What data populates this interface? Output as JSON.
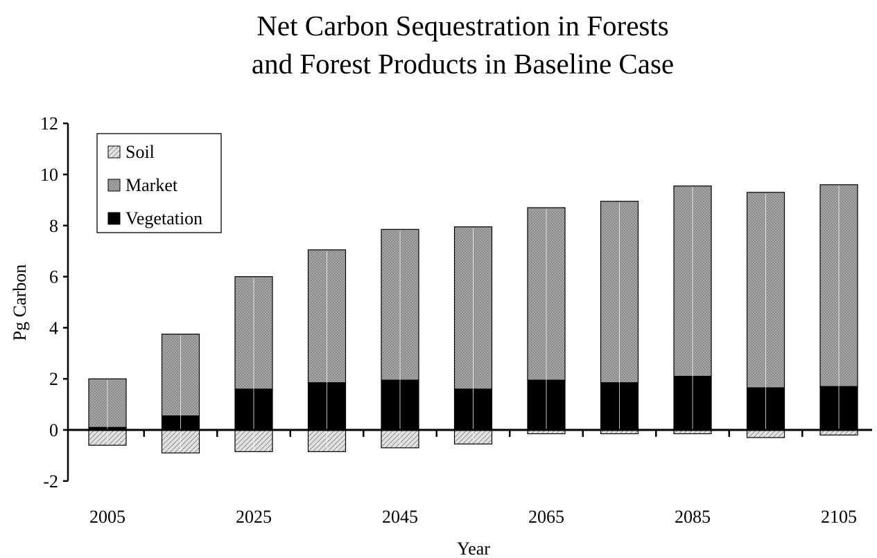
{
  "chart_data": {
    "type": "bar",
    "stacked": true,
    "title_lines": [
      "Net Carbon Sequestration in Forests",
      "and Forest Products in Baseline Case"
    ],
    "xlabel": "Year",
    "ylabel": "Pg Carbon",
    "ylim": [
      -2,
      12
    ],
    "yticks": [
      -2,
      0,
      2,
      4,
      6,
      8,
      10,
      12
    ],
    "x": [
      2005,
      2015,
      2025,
      2035,
      2045,
      2055,
      2065,
      2075,
      2085,
      2095,
      2105
    ],
    "xtick_labels": [
      "2005",
      "2025",
      "2045",
      "2065",
      "2085",
      "2105"
    ],
    "series": [
      {
        "name": "Soil",
        "values": [
          -0.6,
          -0.9,
          -0.85,
          -0.85,
          -0.7,
          -0.55,
          -0.15,
          -0.15,
          -0.15,
          -0.3,
          -0.2
        ],
        "color": "#d4d4d4"
      },
      {
        "name": "Market",
        "values": [
          1.9,
          3.2,
          4.4,
          5.2,
          5.9,
          6.35,
          6.75,
          7.1,
          7.45,
          7.65,
          7.9
        ],
        "color": "#9b9b9b"
      },
      {
        "name": "Vegetation",
        "values": [
          0.1,
          0.55,
          1.6,
          1.85,
          1.95,
          1.6,
          1.95,
          1.85,
          2.1,
          1.65,
          1.7
        ],
        "color": "#000000"
      }
    ],
    "legend_order": [
      "Soil",
      "Market",
      "Vegetation"
    ],
    "legend_position": "top-left",
    "grid": false
  }
}
